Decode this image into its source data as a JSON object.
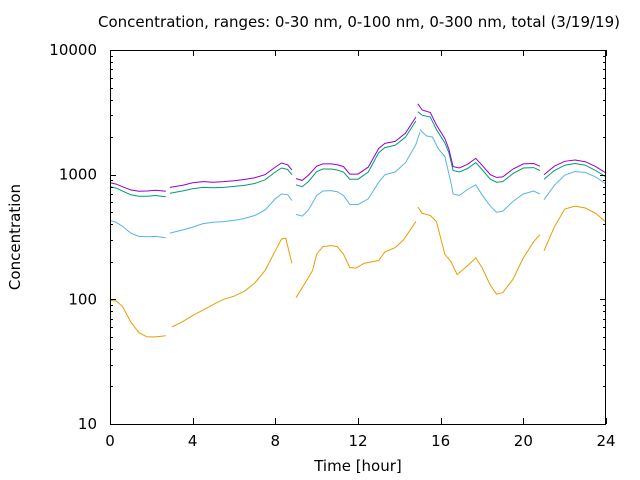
{
  "chart_data": {
    "type": "line",
    "title": "Concentration, ranges: 0-30 nm, 0-100 nm, 0-300 nm, total (3/19/19)",
    "xlabel": "Time [hour]",
    "ylabel": "Concentration",
    "xlim": [
      0,
      24
    ],
    "ylim": [
      10,
      10000
    ],
    "y_scale": "log",
    "grid": false,
    "legend": "none",
    "x_ticks": [
      "0",
      "4",
      "8",
      "12",
      "16",
      "20",
      "24"
    ],
    "y_ticks": [
      "10",
      "100",
      "1000",
      "10000"
    ],
    "x_tick_values": [
      0,
      4,
      8,
      12,
      16,
      20,
      24
    ],
    "y_tick_values": [
      10,
      100,
      1000,
      10000
    ],
    "series": [
      {
        "color": "#e69f00",
        "segments": [
          [
            [
              0.0,
              98
            ],
            [
              0.3,
              97
            ],
            [
              0.6,
              88
            ],
            [
              1.0,
              66
            ],
            [
              1.4,
              54
            ],
            [
              1.8,
              50
            ],
            [
              2.2,
              50
            ],
            [
              2.7,
              51
            ]
          ],
          [
            [
              3.0,
              60
            ],
            [
              3.5,
              66
            ],
            [
              4.0,
              74
            ],
            [
              4.5,
              82
            ],
            [
              5.0,
              91
            ],
            [
              5.5,
              100
            ],
            [
              6.0,
              106
            ],
            [
              6.5,
              116
            ],
            [
              7.0,
              135
            ],
            [
              7.5,
              170
            ],
            [
              8.0,
              245
            ],
            [
              8.3,
              305
            ],
            [
              8.5,
              310
            ],
            [
              8.8,
              195
            ]
          ],
          [
            [
              9.0,
              103
            ],
            [
              9.5,
              140
            ],
            [
              9.8,
              170
            ],
            [
              10.0,
              230
            ],
            [
              10.3,
              265
            ],
            [
              10.7,
              270
            ],
            [
              11.0,
              265
            ],
            [
              11.3,
              230
            ],
            [
              11.6,
              180
            ],
            [
              11.9,
              178
            ],
            [
              12.3,
              195
            ],
            [
              12.7,
              200
            ],
            [
              13.0,
              205
            ],
            [
              13.3,
              240
            ],
            [
              13.8,
              260
            ],
            [
              14.2,
              300
            ],
            [
              14.6,
              375
            ],
            [
              14.8,
              420
            ]
          ],
          [
            [
              14.9,
              550
            ],
            [
              15.1,
              490
            ],
            [
              15.5,
              470
            ],
            [
              15.8,
              420
            ],
            [
              16.2,
              230
            ],
            [
              16.5,
              200
            ],
            [
              16.8,
              158
            ],
            [
              17.2,
              180
            ],
            [
              17.7,
              215
            ],
            [
              18.0,
              180
            ],
            [
              18.4,
              130
            ],
            [
              18.7,
              110
            ],
            [
              19.0,
              113
            ],
            [
              19.5,
              145
            ],
            [
              20.0,
              215
            ],
            [
              20.5,
              290
            ],
            [
              20.8,
              330
            ]
          ],
          [
            [
              21.0,
              245
            ],
            [
              21.5,
              380
            ],
            [
              22.0,
              530
            ],
            [
              22.5,
              560
            ],
            [
              23.0,
              540
            ],
            [
              23.5,
              490
            ],
            [
              24.0,
              415
            ]
          ]
        ]
      },
      {
        "color": "#56b4e9",
        "segments": [
          [
            [
              0.0,
              430
            ],
            [
              0.3,
              415
            ],
            [
              0.6,
              385
            ],
            [
              1.0,
              340
            ],
            [
              1.4,
              320
            ],
            [
              1.8,
              318
            ],
            [
              2.2,
              320
            ],
            [
              2.7,
              312
            ]
          ],
          [
            [
              2.9,
              340
            ],
            [
              3.5,
              360
            ],
            [
              4.0,
              380
            ],
            [
              4.5,
              405
            ],
            [
              5.0,
              415
            ],
            [
              5.5,
              420
            ],
            [
              6.0,
              430
            ],
            [
              6.5,
              445
            ],
            [
              7.0,
              470
            ],
            [
              7.5,
              520
            ],
            [
              8.0,
              640
            ],
            [
              8.3,
              700
            ],
            [
              8.6,
              690
            ],
            [
              8.8,
              620
            ]
          ],
          [
            [
              9.0,
              480
            ],
            [
              9.3,
              465
            ],
            [
              9.6,
              520
            ],
            [
              10.0,
              680
            ],
            [
              10.3,
              740
            ],
            [
              10.7,
              745
            ],
            [
              11.0,
              730
            ],
            [
              11.3,
              680
            ],
            [
              11.6,
              580
            ],
            [
              12.0,
              575
            ],
            [
              12.5,
              640
            ],
            [
              13.0,
              870
            ],
            [
              13.3,
              1000
            ],
            [
              13.8,
              1050
            ],
            [
              14.3,
              1250
            ],
            [
              14.8,
              1750
            ],
            [
              15.0,
              2200
            ]
          ],
          [
            [
              15.0,
              2300
            ],
            [
              15.3,
              2050
            ],
            [
              15.6,
              2000
            ],
            [
              15.9,
              1600
            ],
            [
              16.2,
              1400
            ],
            [
              16.5,
              860
            ],
            [
              16.6,
              700
            ],
            [
              16.9,
              680
            ],
            [
              17.3,
              760
            ],
            [
              17.7,
              830
            ],
            [
              18.0,
              690
            ],
            [
              18.4,
              560
            ],
            [
              18.7,
              500
            ],
            [
              19.0,
              510
            ],
            [
              19.5,
              610
            ],
            [
              20.0,
              700
            ],
            [
              20.5,
              740
            ],
            [
              20.8,
              700
            ]
          ],
          [
            [
              21.0,
              630
            ],
            [
              21.5,
              820
            ],
            [
              22.0,
              990
            ],
            [
              22.5,
              1060
            ],
            [
              23.0,
              1040
            ],
            [
              23.5,
              960
            ],
            [
              24.0,
              840
            ]
          ]
        ]
      },
      {
        "color": "#009e73",
        "segments": [
          [
            [
              0.0,
              800
            ],
            [
              0.3,
              780
            ],
            [
              0.6,
              740
            ],
            [
              1.0,
              690
            ],
            [
              1.4,
              670
            ],
            [
              1.8,
              672
            ],
            [
              2.2,
              680
            ],
            [
              2.7,
              665
            ]
          ],
          [
            [
              2.9,
              710
            ],
            [
              3.5,
              740
            ],
            [
              4.0,
              770
            ],
            [
              4.5,
              790
            ],
            [
              5.0,
              785
            ],
            [
              5.5,
              790
            ],
            [
              6.0,
              805
            ],
            [
              6.5,
              820
            ],
            [
              7.0,
              850
            ],
            [
              7.5,
              910
            ],
            [
              8.0,
              1050
            ],
            [
              8.3,
              1130
            ],
            [
              8.6,
              1100
            ],
            [
              8.8,
              1000
            ]
          ],
          [
            [
              9.0,
              830
            ],
            [
              9.3,
              800
            ],
            [
              9.6,
              880
            ],
            [
              10.0,
              1060
            ],
            [
              10.3,
              1110
            ],
            [
              10.7,
              1110
            ],
            [
              11.0,
              1090
            ],
            [
              11.3,
              1050
            ],
            [
              11.6,
              920
            ],
            [
              12.0,
              920
            ],
            [
              12.5,
              1050
            ],
            [
              13.0,
              1500
            ],
            [
              13.3,
              1650
            ],
            [
              13.8,
              1720
            ],
            [
              14.3,
              2000
            ],
            [
              14.8,
              2700
            ]
          ],
          [
            [
              14.9,
              3200
            ],
            [
              15.1,
              3000
            ],
            [
              15.5,
              2900
            ],
            [
              15.8,
              2300
            ],
            [
              16.2,
              1800
            ],
            [
              16.4,
              1500
            ],
            [
              16.6,
              1080
            ],
            [
              16.9,
              1050
            ],
            [
              17.3,
              1120
            ],
            [
              17.7,
              1250
            ],
            [
              18.0,
              1100
            ],
            [
              18.4,
              920
            ],
            [
              18.7,
              870
            ],
            [
              19.0,
              880
            ],
            [
              19.5,
              1020
            ],
            [
              20.0,
              1130
            ],
            [
              20.5,
              1140
            ],
            [
              20.8,
              1080
            ]
          ],
          [
            [
              21.0,
              920
            ],
            [
              21.5,
              1080
            ],
            [
              22.0,
              1190
            ],
            [
              22.5,
              1230
            ],
            [
              23.0,
              1190
            ],
            [
              23.5,
              1080
            ],
            [
              24.0,
              960
            ]
          ]
        ]
      },
      {
        "color": "#9400d3",
        "segments": [
          [
            [
              0.0,
              860
            ],
            [
              0.3,
              840
            ],
            [
              0.6,
              800
            ],
            [
              1.0,
              755
            ],
            [
              1.4,
              735
            ],
            [
              1.8,
              740
            ],
            [
              2.2,
              750
            ],
            [
              2.7,
              735
            ]
          ],
          [
            [
              2.9,
              790
            ],
            [
              3.5,
              820
            ],
            [
              4.0,
              860
            ],
            [
              4.5,
              880
            ],
            [
              5.0,
              870
            ],
            [
              5.5,
              880
            ],
            [
              6.0,
              895
            ],
            [
              6.5,
              915
            ],
            [
              7.0,
              945
            ],
            [
              7.5,
              1000
            ],
            [
              8.0,
              1150
            ],
            [
              8.3,
              1240
            ],
            [
              8.6,
              1200
            ],
            [
              8.8,
              1090
            ]
          ],
          [
            [
              9.0,
              930
            ],
            [
              9.3,
              900
            ],
            [
              9.6,
              990
            ],
            [
              10.0,
              1170
            ],
            [
              10.3,
              1220
            ],
            [
              10.7,
              1220
            ],
            [
              11.0,
              1200
            ],
            [
              11.3,
              1160
            ],
            [
              11.6,
              1010
            ],
            [
              12.0,
              1010
            ],
            [
              12.5,
              1150
            ],
            [
              13.0,
              1620
            ],
            [
              13.3,
              1780
            ],
            [
              13.8,
              1850
            ],
            [
              14.3,
              2150
            ],
            [
              14.8,
              2900
            ]
          ],
          [
            [
              14.9,
              3700
            ],
            [
              15.1,
              3300
            ],
            [
              15.5,
              3150
            ],
            [
              15.8,
              2500
            ],
            [
              16.2,
              1950
            ],
            [
              16.4,
              1600
            ],
            [
              16.6,
              1160
            ],
            [
              16.9,
              1130
            ],
            [
              17.3,
              1210
            ],
            [
              17.7,
              1350
            ],
            [
              18.0,
              1190
            ],
            [
              18.4,
              1000
            ],
            [
              18.7,
              950
            ],
            [
              19.0,
              960
            ],
            [
              19.5,
              1110
            ],
            [
              20.0,
              1220
            ],
            [
              20.5,
              1230
            ],
            [
              20.8,
              1170
            ]
          ],
          [
            [
              21.0,
              1000
            ],
            [
              21.5,
              1170
            ],
            [
              22.0,
              1280
            ],
            [
              22.5,
              1310
            ],
            [
              23.0,
              1270
            ],
            [
              23.5,
              1160
            ],
            [
              24.0,
              1030
            ]
          ]
        ]
      }
    ]
  }
}
